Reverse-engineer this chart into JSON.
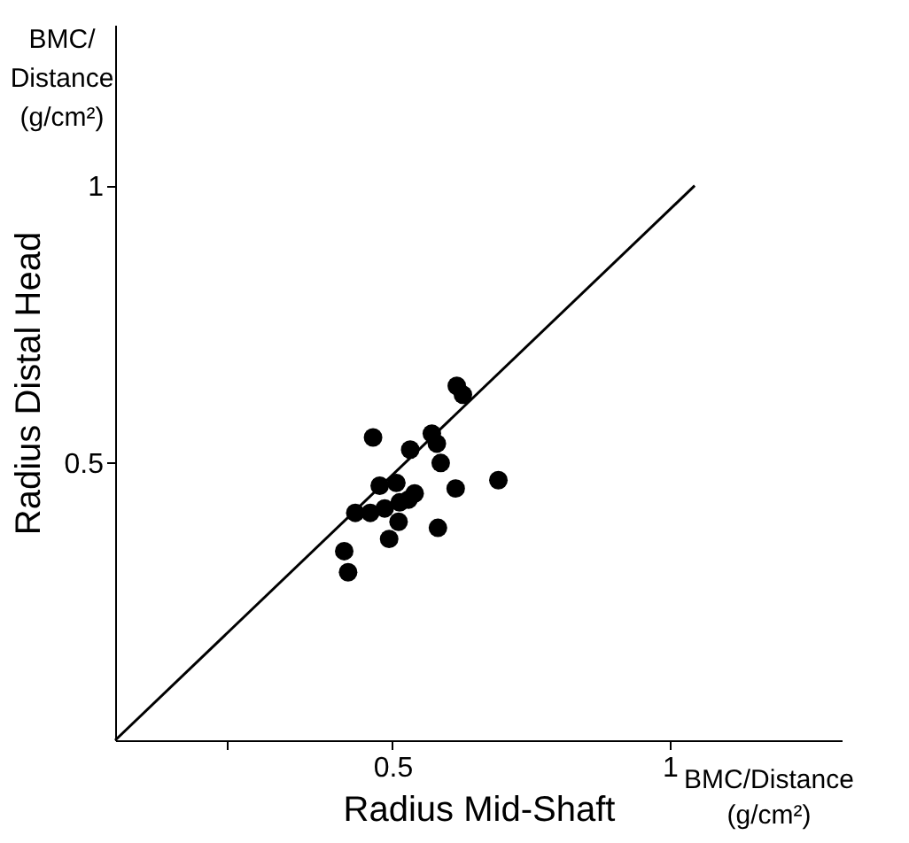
{
  "chart_data": {
    "type": "scatter",
    "xlabel": "Radius Mid-Shaft",
    "ylabel": "Radius Distal Head",
    "annotations": [
      "BMC/Distance (g/cm²)",
      "BMC/Distance (g/cm²)"
    ],
    "xlim": [
      0,
      1.31
    ],
    "ylim": [
      0,
      1.29
    ],
    "xticks": [
      {
        "value": 0.2,
        "label": null
      },
      0.5,
      1
    ],
    "yticks": [
      0.5,
      1
    ],
    "grid": false,
    "series": [
      {
        "marker": "circle",
        "color": "#000000",
        "x": [
          0.616,
          0.627,
          0.465,
          0.532,
          0.571,
          0.58,
          0.587,
          0.691,
          0.614,
          0.477,
          0.507,
          0.433,
          0.46,
          0.486,
          0.513,
          0.529,
          0.54,
          0.511,
          0.494,
          0.582,
          0.413,
          0.42
        ],
        "values": [
          0.639,
          0.623,
          0.546,
          0.524,
          0.553,
          0.535,
          0.5,
          0.469,
          0.454,
          0.459,
          0.464,
          0.41,
          0.41,
          0.418,
          0.429,
          0.434,
          0.445,
          0.394,
          0.363,
          0.383,
          0.341,
          0.303
        ]
      },
      {
        "type": "line",
        "line_style": "solid",
        "color": "#000000",
        "x": [
          0,
          1.045
        ],
        "values": [
          0,
          1.0
        ]
      }
    ]
  }
}
